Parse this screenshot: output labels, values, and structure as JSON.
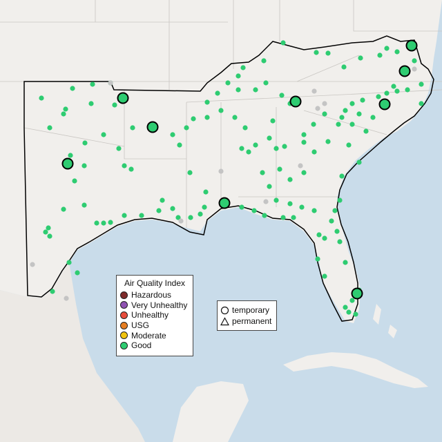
{
  "map": {
    "sensor_status_colors": {
      "good": "#2ecc71",
      "no_data": "#c4c4c4"
    },
    "water_color": "#c9dcea",
    "land_color": "#f1efec",
    "region_outline_color": "#000000"
  },
  "legend_aqi": {
    "title": "Air Quality Index",
    "items": [
      {
        "label": "Hazardous",
        "color": "#7e2b2b"
      },
      {
        "label": "Very Unhealthy",
        "color": "#8f52b2"
      },
      {
        "label": "Unhealthy",
        "color": "#e74c3c"
      },
      {
        "label": "USG",
        "color": "#e67e22"
      },
      {
        "label": "Moderate",
        "color": "#f1c40f"
      },
      {
        "label": "Good",
        "color": "#2ecc71"
      }
    ]
  },
  "legend_type": {
    "items": [
      {
        "label": "temporary",
        "shape": "circle"
      },
      {
        "label": "permanent",
        "shape": "triangle"
      }
    ]
  }
}
